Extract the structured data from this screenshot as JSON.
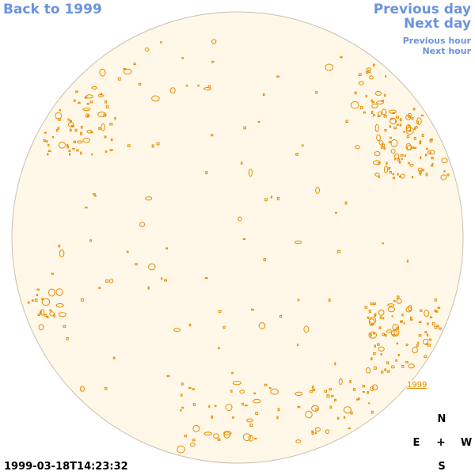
{
  "nav": {
    "back_label": "Back to 1999",
    "previous_day": "Previous day",
    "next_day": "Next day",
    "previous_hour": "Previous hour",
    "next_hour": "Next hour"
  },
  "compass": {
    "north": "N",
    "east": "E",
    "center": "+",
    "west": "W",
    "south": "S"
  },
  "timestamp": "1999-03-18T14:23:32",
  "year_marker": "1999",
  "colors": {
    "link": "#6a93dd",
    "disk_fill": "#fff8e8",
    "disk_border": "#c8c0b0",
    "contour": "#e88a00"
  }
}
